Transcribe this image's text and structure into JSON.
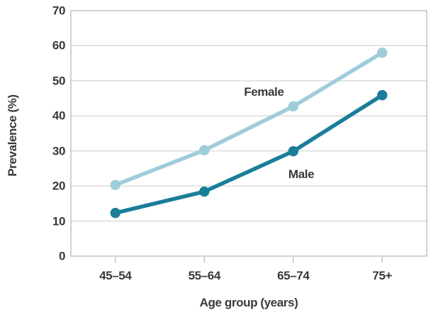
{
  "chart_data": {
    "type": "line",
    "title": "",
    "xlabel": "Age group (years)",
    "ylabel": "Prevalence (%)",
    "categories": [
      "45–54",
      "55–64",
      "65–74",
      "75+"
    ],
    "series": [
      {
        "name": "Female",
        "color": "#9fccda",
        "values": [
          20.3,
          30.2,
          42.7,
          58.0
        ],
        "label_pos": {
          "x_index": 1.67,
          "y_value": 46.7
        }
      },
      {
        "name": "Male",
        "color": "#1a7e99",
        "values": [
          12.3,
          18.4,
          29.9,
          45.9
        ],
        "label_pos": {
          "x_index": 2.09,
          "y_value": 23.3
        }
      }
    ],
    "ylim": [
      0,
      70
    ],
    "ytick_step": 10,
    "grid": "horizontal-only",
    "legend": "inline-labels",
    "colors": {
      "grid": "#cccccc",
      "axis": "#b2b2b2",
      "text": "#3a3a3a",
      "background": "#ffffff"
    }
  }
}
